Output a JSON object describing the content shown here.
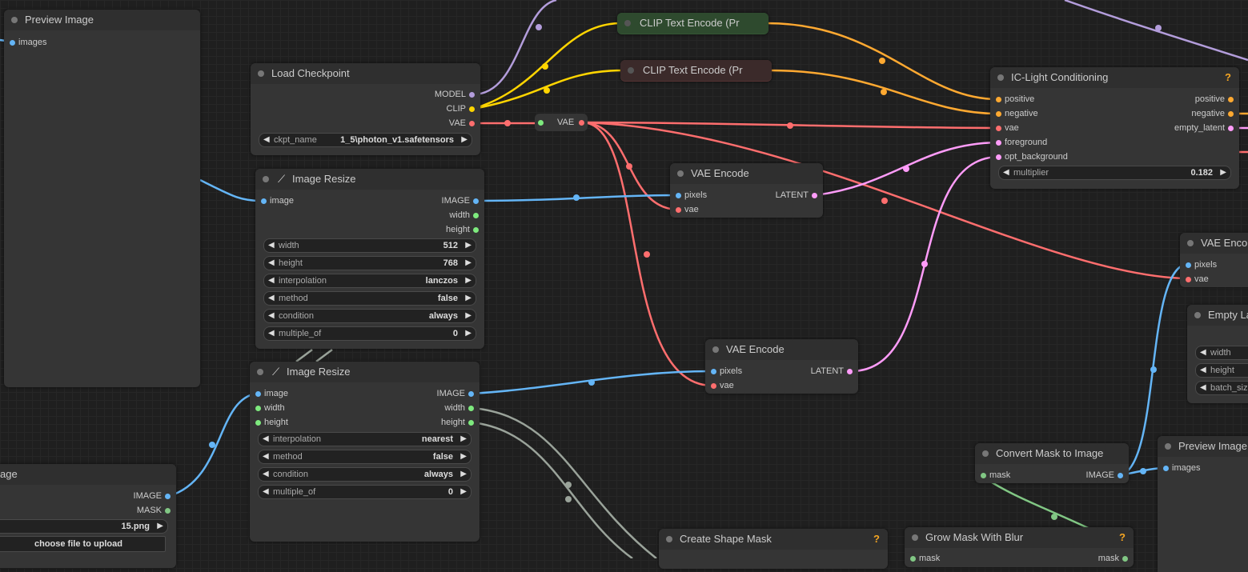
{
  "colors": {
    "clip": "#ffd500",
    "conditioning": "#ffa931",
    "vae": "#ff6e6e",
    "image": "#64b5f6",
    "latent": "#ff9cf9",
    "model": "#b39ddb",
    "int": "#7eea7e",
    "mask": "#81c784"
  },
  "preview_left": {
    "title": "Preview Image",
    "input_images": "images"
  },
  "load_checkpoint": {
    "title": "Load Checkpoint",
    "out_model": "MODEL",
    "out_clip": "CLIP",
    "out_vae": "VAE",
    "ckpt_label": "ckpt_name",
    "ckpt_value": "1_5\\photon_v1.safetensors"
  },
  "clip_pos": {
    "title": "CLIP Text Encode (Pr"
  },
  "clip_neg": {
    "title": "CLIP Text Encode (Pr"
  },
  "vae_reroute": {
    "label": "VAE"
  },
  "resize1": {
    "title": "Image Resize",
    "in_image": "image",
    "out_image": "IMAGE",
    "out_width": "width",
    "out_height": "height",
    "widgets": [
      {
        "label": "width",
        "value": "512"
      },
      {
        "label": "height",
        "value": "768"
      },
      {
        "label": "interpolation",
        "value": "lanczos"
      },
      {
        "label": "method",
        "value": "false"
      },
      {
        "label": "condition",
        "value": "always"
      },
      {
        "label": "multiple_of",
        "value": "0"
      }
    ]
  },
  "resize2": {
    "title": "Image Resize",
    "in_image": "image",
    "in_width": "width",
    "in_height": "height",
    "out_image": "IMAGE",
    "out_width": "width",
    "out_height": "height",
    "widgets": [
      {
        "label": "interpolation",
        "value": "nearest"
      },
      {
        "label": "method",
        "value": "false"
      },
      {
        "label": "condition",
        "value": "always"
      },
      {
        "label": "multiple_of",
        "value": "0"
      }
    ]
  },
  "vae_encode1": {
    "title": "VAE Encode",
    "in_pixels": "pixels",
    "in_vae": "vae",
    "out_latent": "LATENT"
  },
  "vae_encode2": {
    "title": "VAE Encode",
    "in_pixels": "pixels",
    "in_vae": "vae",
    "out_latent": "LATENT"
  },
  "vae_encode3": {
    "title": "VAE Enco",
    "in_pixels": "pixels",
    "in_vae": "vae"
  },
  "iclight": {
    "title": "IC-Light Conditioning",
    "help": "?",
    "in_positive": "positive",
    "in_negative": "negative",
    "in_vae": "vae",
    "in_foreground": "foreground",
    "in_opt_background": "opt_background",
    "out_positive": "positive",
    "out_negative": "negative",
    "out_empty_latent": "empty_latent",
    "multiplier_label": "multiplier",
    "multiplier_value": "0.182"
  },
  "empty_latent": {
    "title": "Empty La",
    "widgets": [
      "width",
      "height",
      "batch_siz"
    ]
  },
  "load_image": {
    "title": "age",
    "out_image": "IMAGE",
    "out_mask": "MASK",
    "file_value": "15.png",
    "upload_label": "choose file to upload"
  },
  "convert_mask": {
    "title": "Convert Mask to Image",
    "in_mask": "mask",
    "out_image": "IMAGE"
  },
  "preview_right": {
    "title": "Preview Image",
    "input_images": "images"
  },
  "create_shape_mask": {
    "title": "Create Shape Mask",
    "help": "?"
  },
  "grow_mask": {
    "title": "Grow Mask With Blur",
    "help": "?",
    "in_mask": "mask",
    "out_mask": "mask"
  }
}
